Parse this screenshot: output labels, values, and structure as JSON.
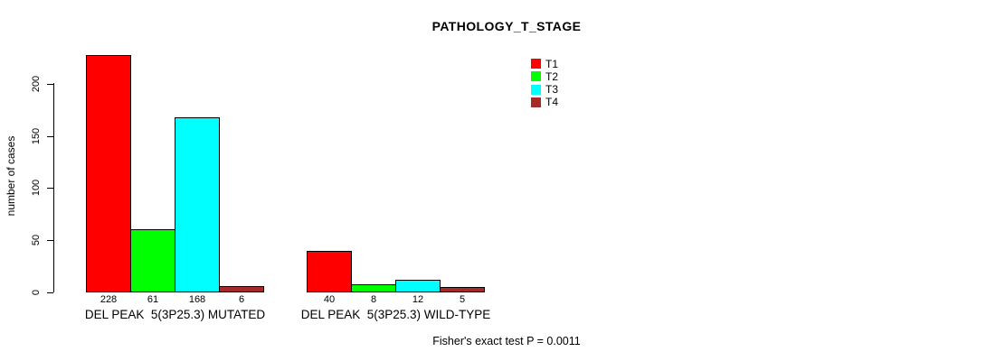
{
  "page": {
    "background": "#FFFFFF",
    "text_color": "#000000"
  },
  "chart_data": {
    "type": "bar",
    "title": "PATHOLOGY_T_STAGE",
    "ylabel": "number of cases",
    "xlabel": "",
    "ylim": [
      0,
      230
    ],
    "yticks": [
      0,
      50,
      100,
      150,
      200
    ],
    "grid": false,
    "legend_position": "top-right-inside",
    "series": [
      {
        "name": "T1",
        "color": "#FF0000"
      },
      {
        "name": "T2",
        "color": "#00FF00"
      },
      {
        "name": "T3",
        "color": "#00FFFF"
      },
      {
        "name": "T4",
        "color": "#A52A2A"
      }
    ],
    "categories": [
      "DEL PEAK  5(3P25.3) MUTATED",
      "DEL PEAK  5(3P25.3) WILD-TYPE"
    ],
    "groups": [
      {
        "label": "DEL PEAK  5(3P25.3) MUTATED",
        "values": [
          228,
          61,
          168,
          6
        ]
      },
      {
        "label": "DEL PEAK  5(3P25.3) WILD-TYPE",
        "values": [
          40,
          8,
          12,
          5
        ]
      }
    ],
    "bar_value_labels_shown": true,
    "footnote": "Fisher's exact test P = 0.0011"
  }
}
